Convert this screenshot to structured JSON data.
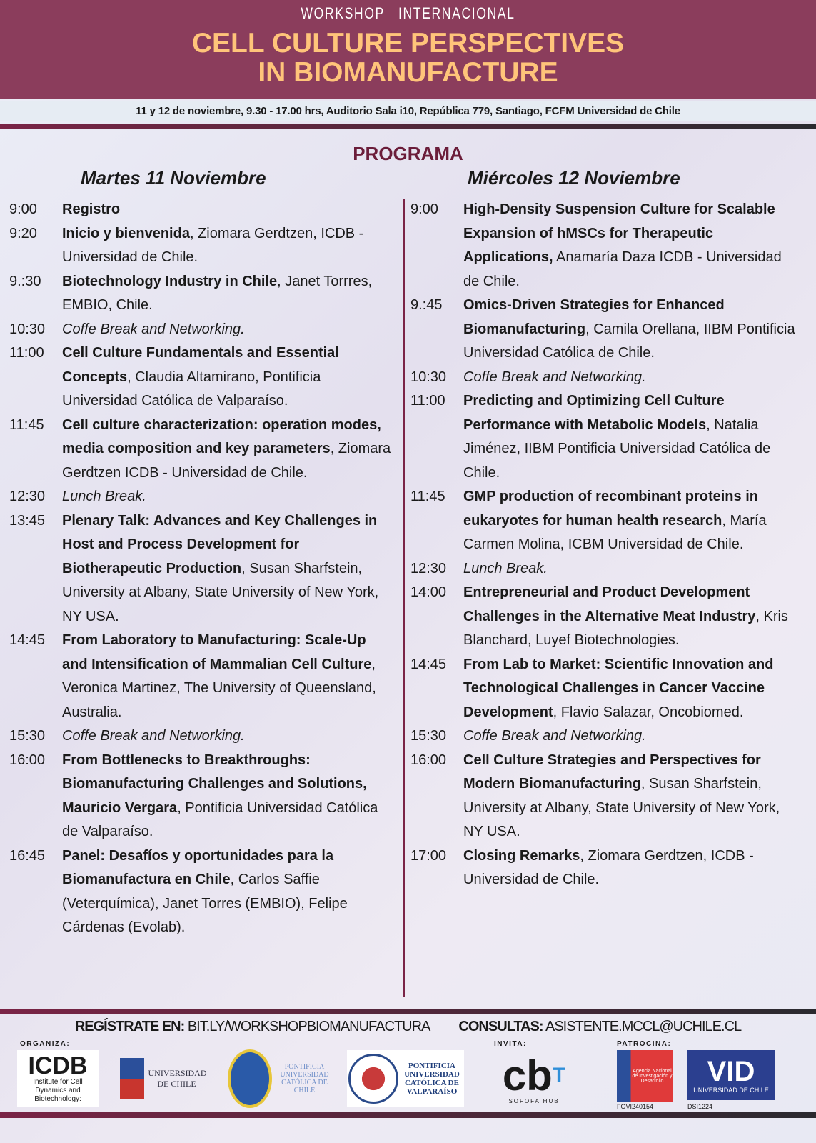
{
  "header": {
    "kicker": "WORKSHOP   INTERNACIONAL",
    "title_line1": "CELL CULTURE PERSPECTIVES",
    "title_line2": "IN BIOMANUFACTURE",
    "subtitle": "11 y 12 de noviembre, 9.30 - 17.00 hrs, Auditorio Sala i10, República 779, Santiago, FCFM Universidad de Chile"
  },
  "programa": "PROGRAMA",
  "day1": {
    "heading": "Martes 11 Noviembre",
    "items": [
      {
        "time": "9:00",
        "title": "Registro",
        "rest": ""
      },
      {
        "time": "9:20",
        "title": "Inicio y bienvenida",
        "rest": ", Ziomara Gerdtzen, ICDB - Universidad de Chile."
      },
      {
        "time": "9.:30",
        "title": "Biotechnology Industry in Chile",
        "rest": ", Janet Torrres, EMBIO, Chile."
      },
      {
        "time": "10:30",
        "title": "",
        "rest": "Coffe Break and Networking.",
        "italic": true
      },
      {
        "time": "11:00",
        "title": "Cell Culture Fundamentals and Essential Concepts",
        "rest": ", Claudia Altamirano, Pontificia Universidad Católica de Valparaíso."
      },
      {
        "time": "11:45",
        "title": "Cell culture characterization: operation modes, media composition and key parameters",
        "rest": ", Ziomara Gerdtzen ICDB - Universidad de Chile."
      },
      {
        "time": "12:30",
        "title": "",
        "rest": "Lunch Break.",
        "italic": true
      },
      {
        "time": "13:45",
        "title": "Plenary Talk: Advances and Key Challenges in Host and Process Development for Biotherapeutic Production",
        "rest": ", Susan Sharfstein, University at Albany, State University of New York, NY USA."
      },
      {
        "time": "14:45",
        "title": "From Laboratory to Manufacturing: Scale-Up and Intensification of Mammalian Cell Culture",
        "rest": ", Veronica Martinez, The University of Queensland, Australia."
      },
      {
        "time": "15:30",
        "title": "",
        "rest": "Coffe Break and Networking.",
        "italic": true
      },
      {
        "time": "16:00",
        "title": "From Bottlenecks to Breakthroughs: Biomanufacturing Challenges and Solutions, Mauricio Vergara",
        "rest": ", Pontificia Universidad Católica de Valparaíso."
      },
      {
        "time": "16:45",
        "title": "Panel: Desafíos y oportunidades para la Biomanufactura en Chile",
        "rest": ", Carlos Saffie (Veterquímica), Janet Torres (EMBIO), Felipe Cárdenas (Evolab)."
      }
    ]
  },
  "day2": {
    "heading": "Miércoles 12 Noviembre",
    "items": [
      {
        "time": "9:00",
        "title": "High-Density Suspension Culture for Scalable Expansion of hMSCs for Therapeutic Applications,",
        "rest": " Anamaría Daza ICDB - Universidad de Chile."
      },
      {
        "time": "9.:45",
        "title": "Omics-Driven Strategies for Enhanced Biomanufacturing",
        "rest": ", Camila Orellana, IIBM Pontificia Universidad Católica de Chile."
      },
      {
        "time": "10:30",
        "title": "",
        "rest": "Coffe Break and Networking.",
        "italic": true
      },
      {
        "time": "11:00",
        "title": "Predicting and Optimizing Cell Culture Performance with Metabolic Models",
        "rest": ", Natalia Jiménez, IIBM Pontificia Universidad Católica de Chile."
      },
      {
        "time": "11:45",
        "title": "GMP production of recombinant proteins in eukaryotes for human health research",
        "rest": ", María Carmen Molina, ICBM Universidad de Chile."
      },
      {
        "time": "12:30",
        "title": "",
        "rest": "Lunch Break.",
        "italic": true
      },
      {
        "time": "14:00",
        "title": "Entrepreneurial and Product Development Challenges in the Alternative Meat Industry",
        "rest": ", Kris Blanchard, Luyef Biotechnologies."
      },
      {
        "time": "14:45",
        "title": "From Lab to Market: Scientific Innovation and Technological Challenges in Cancer Vaccine Development",
        "rest": ", Flavio Salazar, Oncobiomed."
      },
      {
        "time": "15:30",
        "title": "",
        "rest": "Coffe Break and Networking.",
        "italic": true
      },
      {
        "time": "16:00",
        "title": "Cell Culture Strategies and Perspectives for Modern Biomanufacturing",
        "rest": ", Susan Sharfstein, University at Albany, State University of New York, NY USA."
      },
      {
        "time": "17:00",
        "title": "Closing Remarks",
        "rest": ", Ziomara Gerdtzen, ICDB - Universidad de Chile."
      }
    ]
  },
  "footer": {
    "register_label": "REGÍSTRATE EN:",
    "register_url": "BIT.LY/WORKSHOPBIOMANUFACTURA",
    "contact_label": "CONSULTAS:",
    "contact_email": "ASISTENTE.MCCL@UCHILE.CL",
    "organiza": "ORGANIZA:",
    "invita": "INVITA:",
    "patrocina": "PATROCINA:",
    "logos": {
      "icdb": "ICDB",
      "icdb_sub": "Institute for Cell Dynamics and Biotechnology:",
      "uchile": "UNIVERSIDAD DE CHILE",
      "puc": "PONTIFICIA UNIVERSIDAD CATÓLICA DE CHILE",
      "pucv": "PONTIFICIA UNIVERSIDAD CATÓLICA DE VALPARAÍSO",
      "cbt": "cb",
      "cbt_sub": "SOFOFA HUB",
      "anid": "Agencia Nacional de Investigación y Desarrollo",
      "anid_code": "FOVI240154",
      "vid": "VID",
      "vid_sub": "UNIVERSIDAD DE CHILE",
      "vid_code": "DSI1224"
    }
  },
  "colors": {
    "maroon": "#8b3d5c",
    "title_gold": "#ffc47a",
    "programa": "#6b1d3a"
  }
}
